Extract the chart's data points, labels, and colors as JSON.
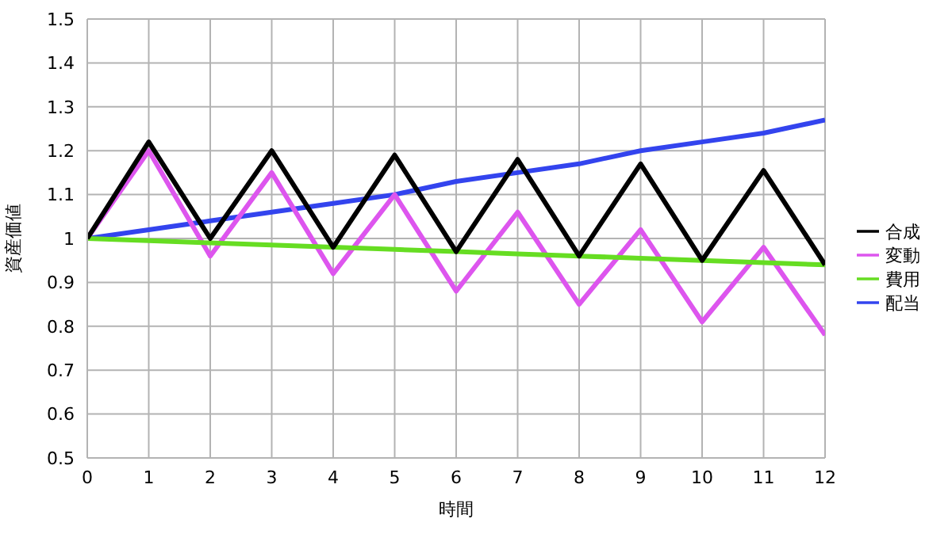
{
  "chart_data": {
    "type": "line",
    "xlabel": "時間",
    "ylabel": "資産価値",
    "x": [
      0,
      1,
      2,
      3,
      4,
      5,
      6,
      7,
      8,
      9,
      10,
      11,
      12
    ],
    "series": [
      {
        "name": "配当",
        "color": "#3344ee",
        "values": [
          1,
          1.02,
          1.04,
          1.06,
          1.08,
          1.1,
          1.13,
          1.15,
          1.17,
          1.2,
          1.22,
          1.24,
          1.27
        ]
      },
      {
        "name": "変動",
        "color": "#dd55ee",
        "values": [
          1,
          1.2,
          0.96,
          1.15,
          0.92,
          1.1,
          0.88,
          1.06,
          0.85,
          1.02,
          0.81,
          0.98,
          0.78
        ]
      },
      {
        "name": "費用",
        "color": "#66dd22",
        "values": [
          1,
          0.995,
          0.99,
          0.985,
          0.98,
          0.975,
          0.97,
          0.965,
          0.96,
          0.955,
          0.95,
          0.945,
          0.94
        ]
      },
      {
        "name": "合成",
        "color": "#000000",
        "values": [
          1,
          1.22,
          1,
          1.2,
          0.98,
          1.19,
          0.97,
          1.18,
          0.96,
          1.17,
          0.95,
          1.155,
          0.94
        ]
      }
    ],
    "xlim": [
      0,
      12
    ],
    "xticks": [
      0,
      1,
      2,
      3,
      4,
      5,
      6,
      7,
      8,
      9,
      10,
      11,
      12
    ],
    "ylim": [
      0.5,
      1.5
    ],
    "yticks": [
      0.5,
      0.6,
      0.7,
      0.8,
      0.9,
      1,
      1.1,
      1.2,
      1.3,
      1.4,
      1.5
    ],
    "grid": true,
    "legend": "right",
    "marker": "none",
    "line_style": "solid"
  }
}
